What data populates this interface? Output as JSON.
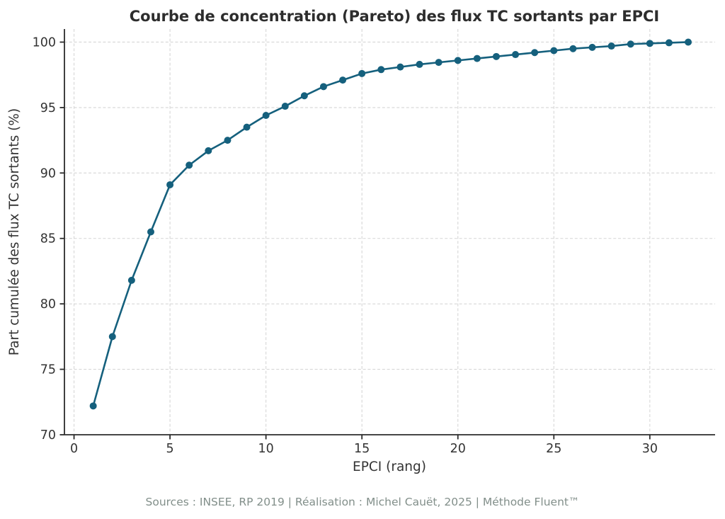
{
  "chart_data": {
    "type": "line",
    "title": "Courbe de concentration (Pareto) des flux TC sortants par EPCI",
    "xlabel": "EPCI (rang)",
    "ylabel": "Part cumulée des flux TC sortants (%)",
    "footer": "Sources : INSEE, RP 2019 | Réalisation : Michel Cauët, 2025 | Méthode Fluent™",
    "x": [
      1,
      2,
      3,
      4,
      5,
      6,
      7,
      8,
      9,
      10,
      11,
      12,
      13,
      14,
      15,
      16,
      17,
      18,
      19,
      20,
      21,
      22,
      23,
      24,
      25,
      26,
      27,
      28,
      29,
      30,
      31,
      32
    ],
    "y": [
      72.2,
      77.5,
      81.8,
      85.5,
      89.1,
      90.6,
      91.7,
      92.5,
      93.5,
      94.4,
      95.1,
      95.9,
      96.6,
      97.1,
      97.6,
      97.9,
      98.1,
      98.3,
      98.45,
      98.6,
      98.75,
      98.9,
      99.05,
      99.2,
      99.35,
      99.5,
      99.6,
      99.7,
      99.85,
      99.9,
      99.95,
      100.0
    ],
    "xticks": [
      0,
      5,
      10,
      15,
      20,
      25,
      30
    ],
    "yticks": [
      70,
      75,
      80,
      85,
      90,
      95,
      100
    ],
    "xlim": [
      -0.5,
      33.4
    ],
    "ylim": [
      70,
      101
    ],
    "grid": true,
    "legend": "none",
    "marker": "circle",
    "colors": {
      "line": "#15607d",
      "marker": "#15607d",
      "grid": "#d6d6d6",
      "spine": "#2b2b2b",
      "tick_text": "#333333",
      "title_text": "#2d2d2d",
      "footer_text": "#828f8a"
    }
  }
}
